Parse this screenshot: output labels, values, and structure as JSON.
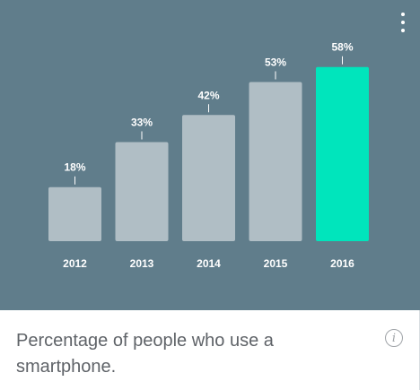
{
  "menu": {
    "icon": "more-vert-icon"
  },
  "caption": "Percentage of people who use a smartphone.",
  "info": {
    "icon": "info-icon",
    "glyph": "i"
  },
  "colors": {
    "background": "#607d8b",
    "bar": "#b0bec5",
    "highlight": "#00e5bc",
    "text": "#ffffff"
  },
  "chart_data": {
    "type": "bar",
    "title": "",
    "xlabel": "",
    "ylabel": "",
    "categories": [
      "2012",
      "2013",
      "2014",
      "2015",
      "2016"
    ],
    "values": [
      18,
      33,
      42,
      53,
      58
    ],
    "value_labels": [
      "18%",
      "33%",
      "42%",
      "53%",
      "58%"
    ],
    "ylim": [
      0,
      60
    ],
    "highlight_index": 4,
    "grid": false,
    "legend": "none"
  }
}
